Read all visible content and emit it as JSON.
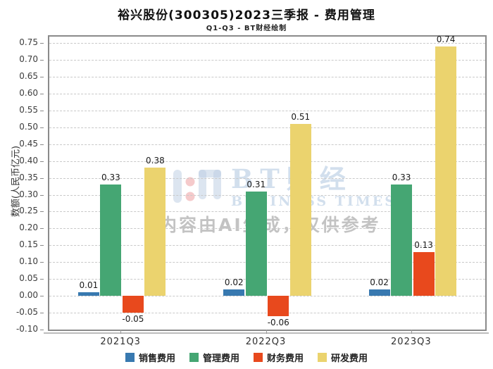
{
  "chart_data": {
    "type": "bar",
    "title": "裕兴股份(300305)2023三季报 - 费用管理",
    "subtitle": "Q1-Q3 - BT财经绘制",
    "ylabel": "数额(人民币亿元)",
    "categories": [
      "2021Q3",
      "2022Q3",
      "2023Q3"
    ],
    "series": [
      {
        "id": "selling-expenses",
        "name": "销售费用",
        "color": "#3879B0",
        "values": [
          0.01,
          0.02,
          0.02
        ]
      },
      {
        "id": "admin-expenses",
        "name": "管理费用",
        "color": "#45A673",
        "values": [
          0.33,
          0.31,
          0.33
        ]
      },
      {
        "id": "financial-expenses",
        "name": "财务费用",
        "color": "#E8491D",
        "values": [
          -0.05,
          -0.06,
          0.13
        ]
      },
      {
        "id": "rd-expenses",
        "name": "研发费用",
        "color": "#EBD36E",
        "values": [
          0.38,
          0.51,
          0.74
        ]
      }
    ],
    "ylim": [
      -0.1,
      0.769
    ],
    "yticks": [
      "0.75",
      "0.70",
      "0.65",
      "0.60",
      "0.55",
      "0.50",
      "0.45",
      "0.40",
      "0.35",
      "0.30",
      "0.25",
      "0.20",
      "0.15",
      "0.10",
      "0.05",
      "0.00",
      "-0.05",
      "-0.10"
    ],
    "grid": true,
    "legend_position": "bottom"
  },
  "watermark": {
    "brand": "BT财经",
    "brand_caption": "BUSINESS TIMES",
    "disclaimer": "内容由AI生成，仅供参考"
  }
}
